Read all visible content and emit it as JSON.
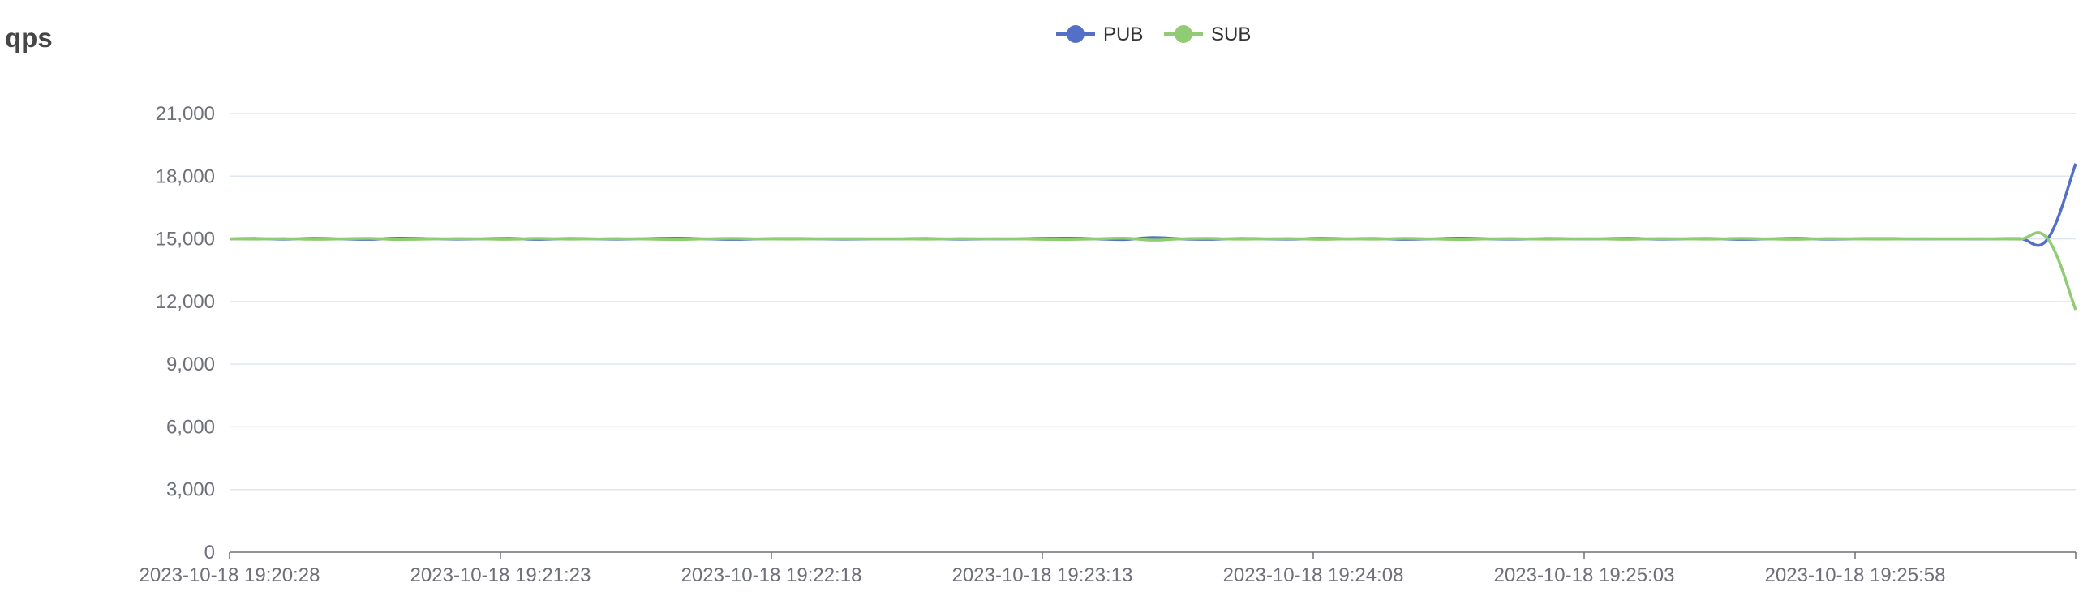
{
  "title": "qps",
  "chart_data": {
    "type": "line",
    "title": "qps",
    "xlabel": "",
    "ylabel": "",
    "ylim": [
      0,
      21000
    ],
    "yticks": [
      "0",
      "3,000",
      "6,000",
      "9,000",
      "12,000",
      "15,000",
      "18,000",
      "21,000"
    ],
    "xticks": [
      "2023-10-18 19:20:28",
      "2023-10-18 19:21:23",
      "2023-10-18 19:22:18",
      "2023-10-18 19:23:13",
      "2023-10-18 19:24:08",
      "2023-10-18 19:25:03",
      "2023-10-18 19:25:58"
    ],
    "grid": true,
    "legend_position": "top-center",
    "series": [
      {
        "name": "PUB",
        "color": "#5470c6",
        "values": [
          15000,
          15010,
          14990,
          15020,
          15000,
          14980,
          15030,
          15010,
          14990,
          15000,
          15020,
          14980,
          15010,
          15000,
          14990,
          15010,
          15030,
          15000,
          14980,
          15000,
          15010,
          15000,
          14990,
          15000,
          15000,
          15010,
          14990,
          15000,
          15000,
          15020,
          15030,
          15000,
          14970,
          15060,
          15000,
          14980,
          15010,
          15000,
          14990,
          15020,
          15000,
          15010,
          14980,
          15000,
          15030,
          15000,
          14990,
          15010,
          15000,
          15000,
          15020,
          14990,
          15000,
          15010,
          14980,
          15000,
          15020,
          14990,
          15000,
          15010,
          15000,
          15000,
          15000,
          15000,
          15010,
          15000,
          18600
        ]
      },
      {
        "name": "SUB",
        "color": "#91cc75",
        "values": [
          15000,
          14990,
          15010,
          14980,
          15000,
          15020,
          14970,
          14990,
          15010,
          15000,
          14980,
          15020,
          14990,
          15000,
          15010,
          14990,
          14970,
          15000,
          15020,
          15000,
          14990,
          15000,
          15010,
          15000,
          15000,
          14990,
          15010,
          15000,
          15000,
          14980,
          14970,
          15000,
          15030,
          14940,
          15000,
          15020,
          14990,
          15000,
          15010,
          14980,
          15000,
          14990,
          15020,
          15000,
          14970,
          15000,
          15010,
          14990,
          15000,
          15000,
          14980,
          15010,
          15000,
          14990,
          15020,
          15000,
          14980,
          15010,
          15000,
          14990,
          15000,
          15000,
          15000,
          15000,
          14990,
          15000,
          11600
        ]
      }
    ]
  }
}
